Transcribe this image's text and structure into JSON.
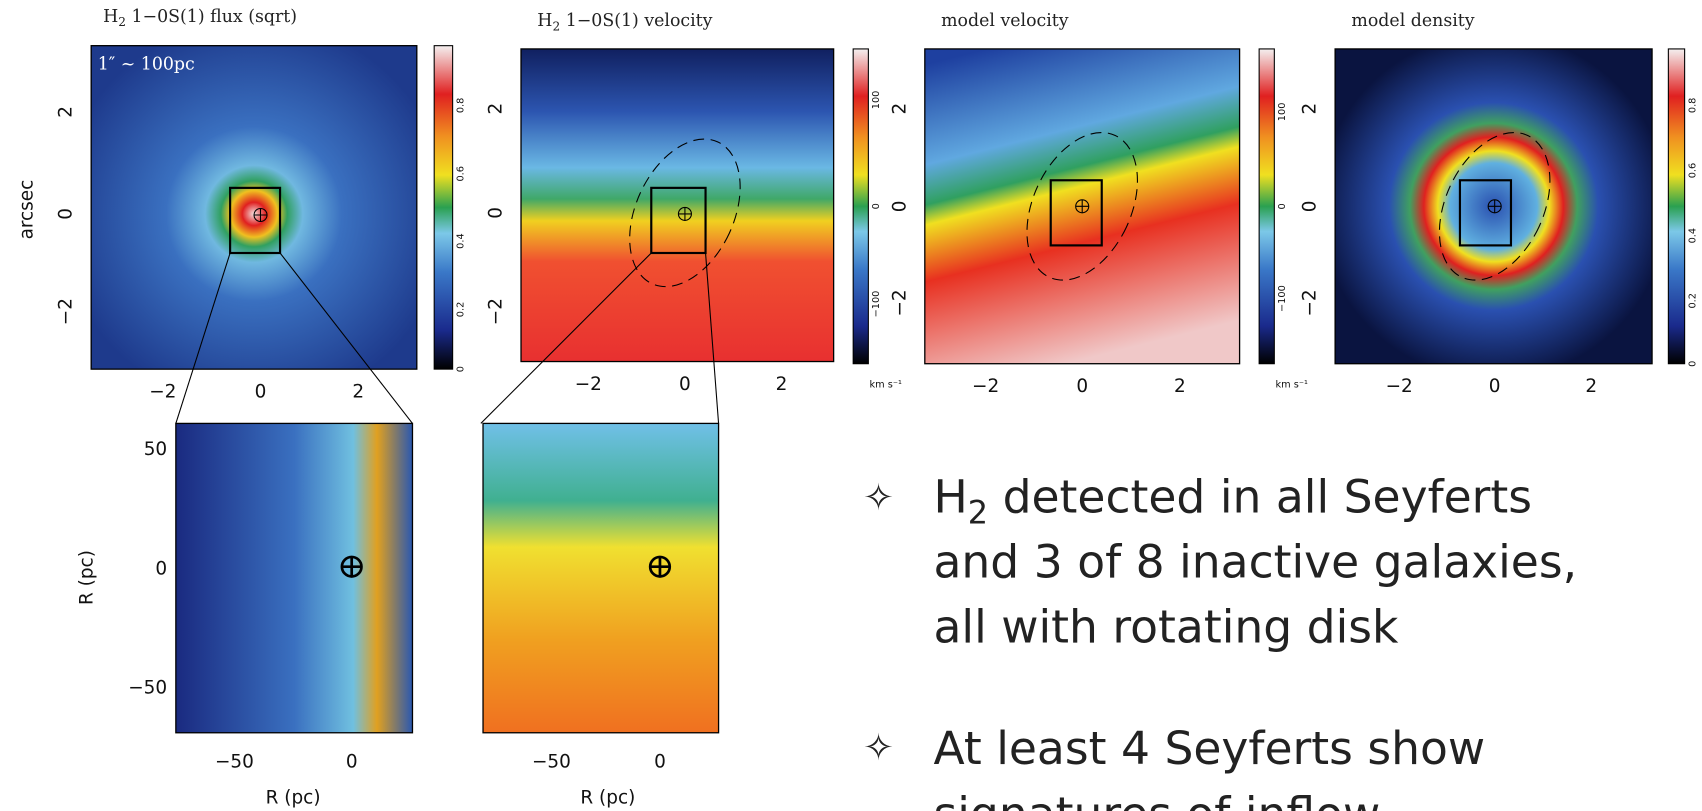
{
  "top_panels": [
    {
      "title": [
        "H",
        "2",
        " 1−0S(1) flux (sqrt)"
      ],
      "xticks": [
        "−2",
        "0",
        "2"
      ],
      "yticks": [
        "2",
        "0",
        "−2"
      ],
      "colorbar_ticks": [
        "0.8",
        "0.6",
        "0.4",
        "0.2",
        "0"
      ]
    },
    {
      "title": [
        "H",
        "2",
        " 1−0S(1) velocity"
      ],
      "xticks": [
        "−2",
        "0",
        "2"
      ],
      "yticks": [
        "2",
        "0",
        "−2"
      ],
      "colorbar_ticks": [
        "100",
        "0",
        "−100"
      ],
      "colorbar_unit": "km s⁻¹"
    },
    {
      "title": [
        "model velocity"
      ],
      "xticks": [
        "−2",
        "0",
        "2"
      ],
      "yticks": [
        "2",
        "0",
        "−2"
      ],
      "colorbar_ticks": [
        "100",
        "0",
        "−100"
      ],
      "colorbar_unit": "km s⁻¹"
    },
    {
      "title": [
        "model density"
      ],
      "xticks": [
        "−2",
        "0",
        "2"
      ],
      "yticks": [
        "2",
        "0",
        "−2"
      ],
      "colorbar_ticks": [
        "0.8",
        "0.6",
        "0.4",
        "0.2",
        "0"
      ]
    }
  ],
  "y_label": "arcsec",
  "scale_note": "1″ ~ 100pc",
  "bottom_panels": [
    {
      "xticks": [
        "−50",
        "0"
      ],
      "yticks": [
        "50",
        "0",
        "−50"
      ],
      "x_label": "R (pc)",
      "y_label": "R (pc)"
    },
    {
      "xticks": [
        "−50",
        "0"
      ],
      "x_label": "R (pc)"
    }
  ],
  "bullets": [
    {
      "lines": [
        [
          "H",
          "2",
          " detected in all Seyferts"
        ],
        [
          "and 3 of 8 inactive galaxies,"
        ],
        [
          "all with rotating disk"
        ]
      ]
    },
    {
      "lines": [
        [
          "At least 4 Seyferts show"
        ],
        [
          "signatures of inflow"
        ]
      ]
    }
  ]
}
